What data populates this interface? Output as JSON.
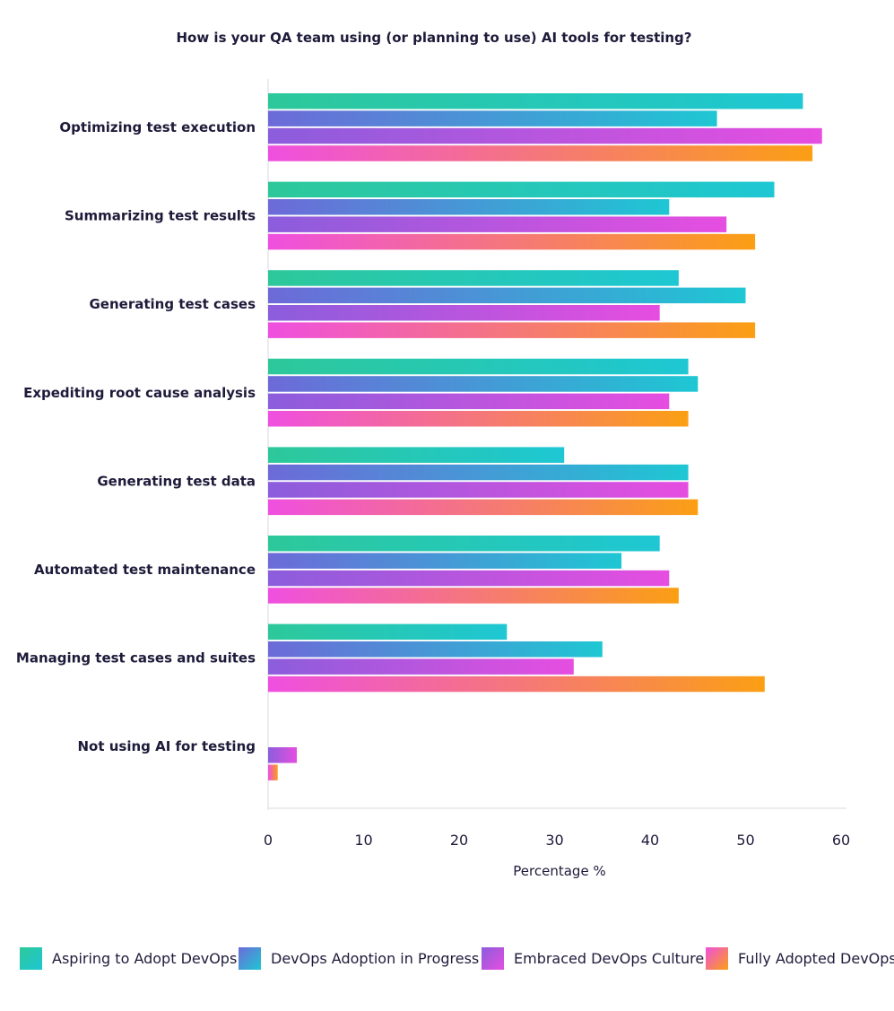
{
  "chart_data": {
    "type": "bar",
    "orientation": "horizontal",
    "title": "How is your QA team using (or planning to use) AI tools for testing?",
    "xlabel": "Percentage %",
    "ylabel": "",
    "xlim": [
      0,
      60
    ],
    "xticks": [
      "0",
      "10",
      "20",
      "30",
      "40",
      "50",
      "60"
    ],
    "grid": false,
    "legend_position": "bottom",
    "categories": [
      "Optimizing test execution",
      "Summarizing test results",
      "Generating test cases",
      "Expediting root cause analysis",
      "Generating test data",
      "Automated test maintenance",
      "Managing test cases and suites",
      "Not using AI for testing"
    ],
    "series": [
      {
        "name": "Aspiring to Adopt DevOps",
        "colors": [
          "#2dc89a",
          "#1ec7d3"
        ],
        "values": [
          56,
          53,
          43,
          44,
          31,
          41,
          25,
          0
        ]
      },
      {
        "name": "DevOps Adoption in Progress",
        "colors": [
          "#6d6ad8",
          "#1ec7d3"
        ],
        "values": [
          47,
          42,
          50,
          45,
          44,
          37,
          35,
          0
        ]
      },
      {
        "name": "Embraced DevOps Culture",
        "colors": [
          "#8b5ddc",
          "#e64ee0"
        ],
        "values": [
          58,
          48,
          41,
          42,
          44,
          42,
          32,
          3
        ]
      },
      {
        "name": "Fully Adopted DevOps",
        "colors": [
          "#ef4fe0",
          "#fb9f14"
        ],
        "values": [
          57,
          51,
          51,
          44,
          45,
          43,
          52,
          1
        ]
      }
    ]
  }
}
